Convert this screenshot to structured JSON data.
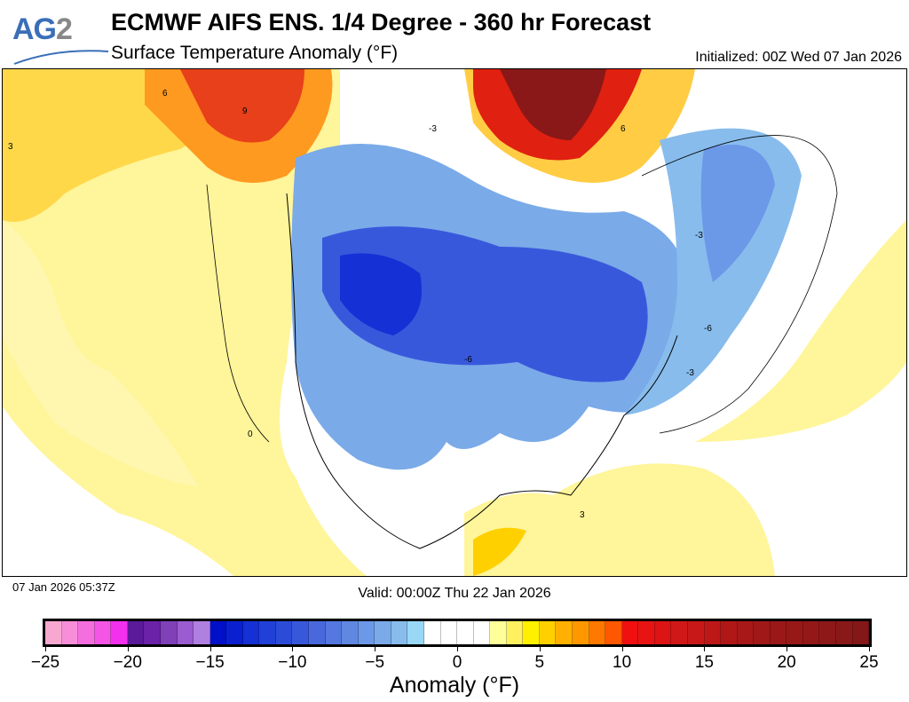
{
  "logo": {
    "text_a": "AG",
    "text_b": "2"
  },
  "header": {
    "title": "ECMWF AIFS ENS. 1/4 Degree - 360 hr Forecast",
    "subtitle": "Surface Temperature Anomaly (°F)",
    "initialized": "Initialized: 00Z Wed 07 Jan 2026"
  },
  "footer": {
    "timestamp": "07 Jan 2026 05:37Z",
    "valid": "Valid: 00:00Z Thu 22 Jan 2026"
  },
  "colorbar": {
    "label": "Anomaly (°F)",
    "min": -25,
    "max": 25,
    "step": 1,
    "tick_labels": [
      "−25",
      "−20",
      "−15",
      "−10",
      "−5",
      "0",
      "5",
      "10",
      "15",
      "20",
      "25"
    ],
    "colors": [
      "#f7a8d0",
      "#f88ed8",
      "#f56ee0",
      "#f555e5",
      "#f230ee",
      "#5a1a9a",
      "#6a22a8",
      "#8040b8",
      "#9a5cd0",
      "#b080e0",
      "#0010c8",
      "#0a20d0",
      "#1530d4",
      "#2040d8",
      "#2c4cd8",
      "#3858dc",
      "#4868dc",
      "#5478e0",
      "#6088e0",
      "#6c98e8",
      "#7aaae8",
      "#88bcec",
      "#98d8f4",
      "#ffffff",
      "#ffffff",
      "#ffffff",
      "#ffffff",
      "#ffff99",
      "#fff060",
      "#fff000",
      "#ffd000",
      "#ffb000",
      "#ff9800",
      "#ff7800",
      "#ff5800",
      "#f01010",
      "#e81414",
      "#dc1414",
      "#d01818",
      "#c81818",
      "#bc1818",
      "#b01818",
      "#a81818",
      "#a01818",
      "#9c1818",
      "#981818",
      "#941818",
      "#8e1818",
      "#8a1818",
      "#841818"
    ]
  },
  "map": {
    "contour_labels": [
      "6",
      "3",
      "-3",
      "-6",
      "-3",
      "-6",
      "-3",
      "0",
      "3",
      "6",
      "9"
    ]
  }
}
